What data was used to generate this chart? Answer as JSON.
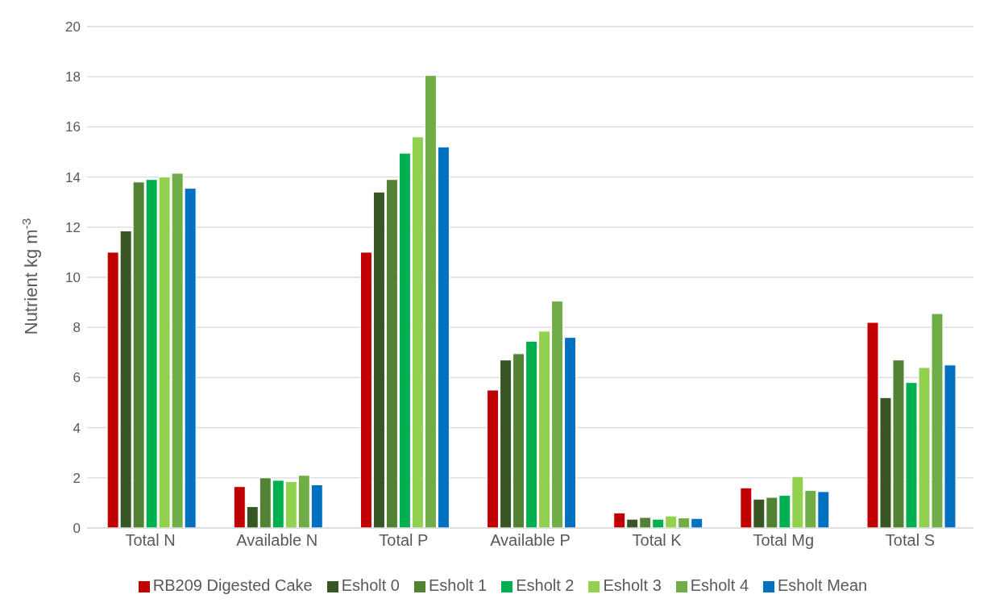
{
  "chart_data": {
    "type": "bar",
    "ylabel": "Nutrient kg m$^{-3}$",
    "categories": [
      "Total N",
      "Available N",
      "Total P",
      "Available P",
      "Total K",
      "Total Mg",
      "Total S"
    ],
    "series": [
      {
        "name": "RB209 Digested Cake",
        "color": "#c00000",
        "values": [
          11.0,
          1.65,
          11.0,
          5.5,
          0.6,
          1.6,
          8.2
        ]
      },
      {
        "name": "Esholt 0",
        "color": "#375623",
        "values": [
          11.85,
          0.85,
          13.4,
          6.7,
          0.35,
          1.15,
          5.2
        ]
      },
      {
        "name": "Esholt 1",
        "color": "#548235",
        "values": [
          13.8,
          2.0,
          13.9,
          6.95,
          0.42,
          1.22,
          6.7
        ]
      },
      {
        "name": "Esholt 2",
        "color": "#00b050",
        "values": [
          13.9,
          1.9,
          14.95,
          7.45,
          0.35,
          1.3,
          5.8
        ]
      },
      {
        "name": "Esholt 3",
        "color": "#92d050",
        "values": [
          14.0,
          1.85,
          15.6,
          7.85,
          0.48,
          2.05,
          6.4
        ]
      },
      {
        "name": "Esholt 4",
        "color": "#70ad47",
        "values": [
          14.15,
          2.1,
          18.05,
          9.05,
          0.4,
          1.5,
          8.55
        ]
      },
      {
        "name": "Esholt Mean",
        "color": "#0070c0",
        "values": [
          13.55,
          1.72,
          15.2,
          7.6,
          0.38,
          1.45,
          6.5
        ]
      }
    ],
    "ylim": [
      0,
      20
    ],
    "yticks": [
      0,
      2,
      4,
      6,
      8,
      10,
      12,
      14,
      16,
      18,
      20
    ],
    "grid": "y",
    "legend": "bottom"
  }
}
